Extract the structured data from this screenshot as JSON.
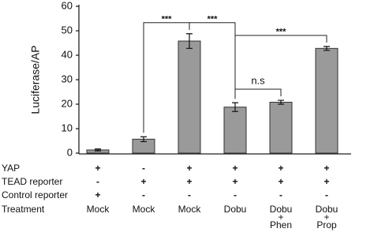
{
  "chart_data": {
    "type": "bar",
    "y_label": "Luciferase/AP",
    "values": [
      1.3,
      5.7,
      45.8,
      18.8,
      20.8,
      42.8
    ],
    "errors": [
      0.4,
      1.0,
      3.0,
      1.8,
      0.8,
      0.8
    ],
    "color": "#9a9a9a",
    "ylim": [
      0,
      60
    ],
    "yticks": [
      0,
      10,
      20,
      30,
      40,
      50,
      60
    ],
    "annotations": [
      {
        "text": "***",
        "from": 1,
        "to": 2
      },
      {
        "text": "***",
        "from": 2,
        "to": 3
      },
      {
        "text": "n.s",
        "from": 3,
        "to": 4
      },
      {
        "text": "***",
        "from": 3,
        "to": 5
      }
    ],
    "rows": [
      {
        "label": "YAP",
        "cells": [
          "+",
          "-",
          "+",
          "+",
          "+",
          "+"
        ]
      },
      {
        "label": "TEAD reporter",
        "cells": [
          "-",
          "+",
          "+",
          "+",
          "+",
          "+"
        ]
      },
      {
        "label": "Control reporter",
        "cells": [
          "+",
          "-",
          "-",
          "-",
          "-",
          "-"
        ]
      }
    ],
    "treatment_label": "Treatment",
    "categories": [
      [
        "Mock"
      ],
      [
        "Mock"
      ],
      [
        "Mock"
      ],
      [
        "Dobu"
      ],
      [
        "Dobu",
        "+",
        "Phen"
      ],
      [
        "Dobu",
        "+",
        "Prop"
      ]
    ]
  }
}
